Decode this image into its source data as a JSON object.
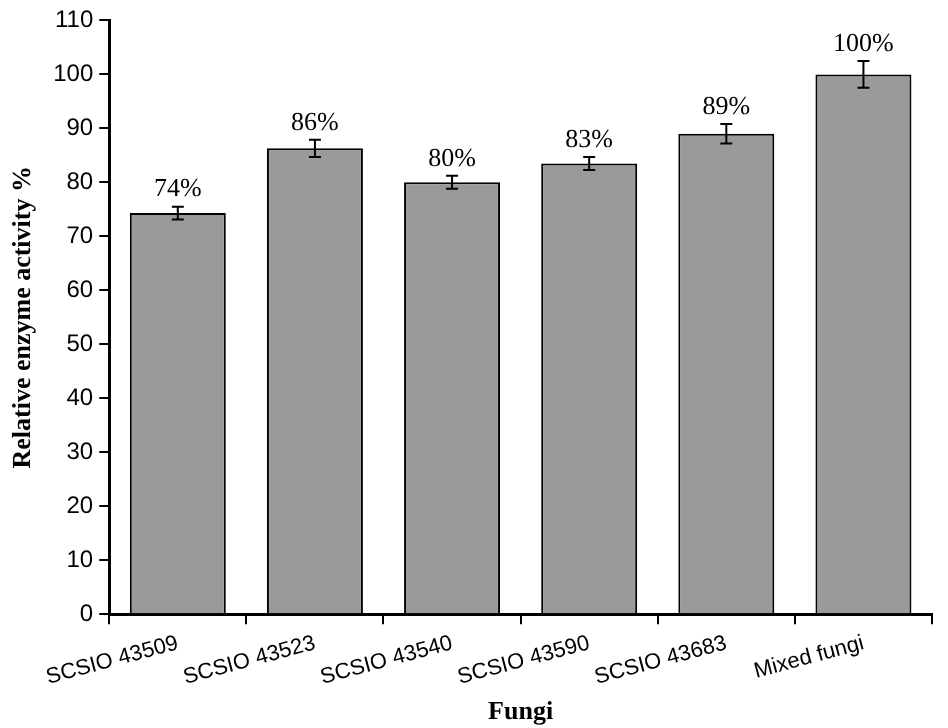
{
  "chart_data": {
    "type": "bar",
    "xlabel": "Fungi",
    "ylabel": "Relative enzyme activity %",
    "categories": [
      "SCSIO 43509",
      "SCSIO 43523",
      "SCSIO 43540",
      "SCSIO 43590",
      "SCSIO 43683",
      "Mixed fungi"
    ],
    "values": [
      74.3,
      86.3,
      80,
      83.5,
      89,
      100
    ],
    "errors": [
      1.2,
      1.6,
      1.2,
      1.2,
      1.8,
      2.5
    ],
    "value_labels": [
      "74%",
      "86%",
      "80%",
      "83%",
      "89%",
      "100%"
    ],
    "color": "#9a9a9a",
    "ylim": [
      0,
      110
    ],
    "yticks": [
      0,
      10,
      20,
      30,
      40,
      50,
      60,
      70,
      80,
      90,
      100,
      110
    ],
    "grid": false,
    "legend": false
  }
}
